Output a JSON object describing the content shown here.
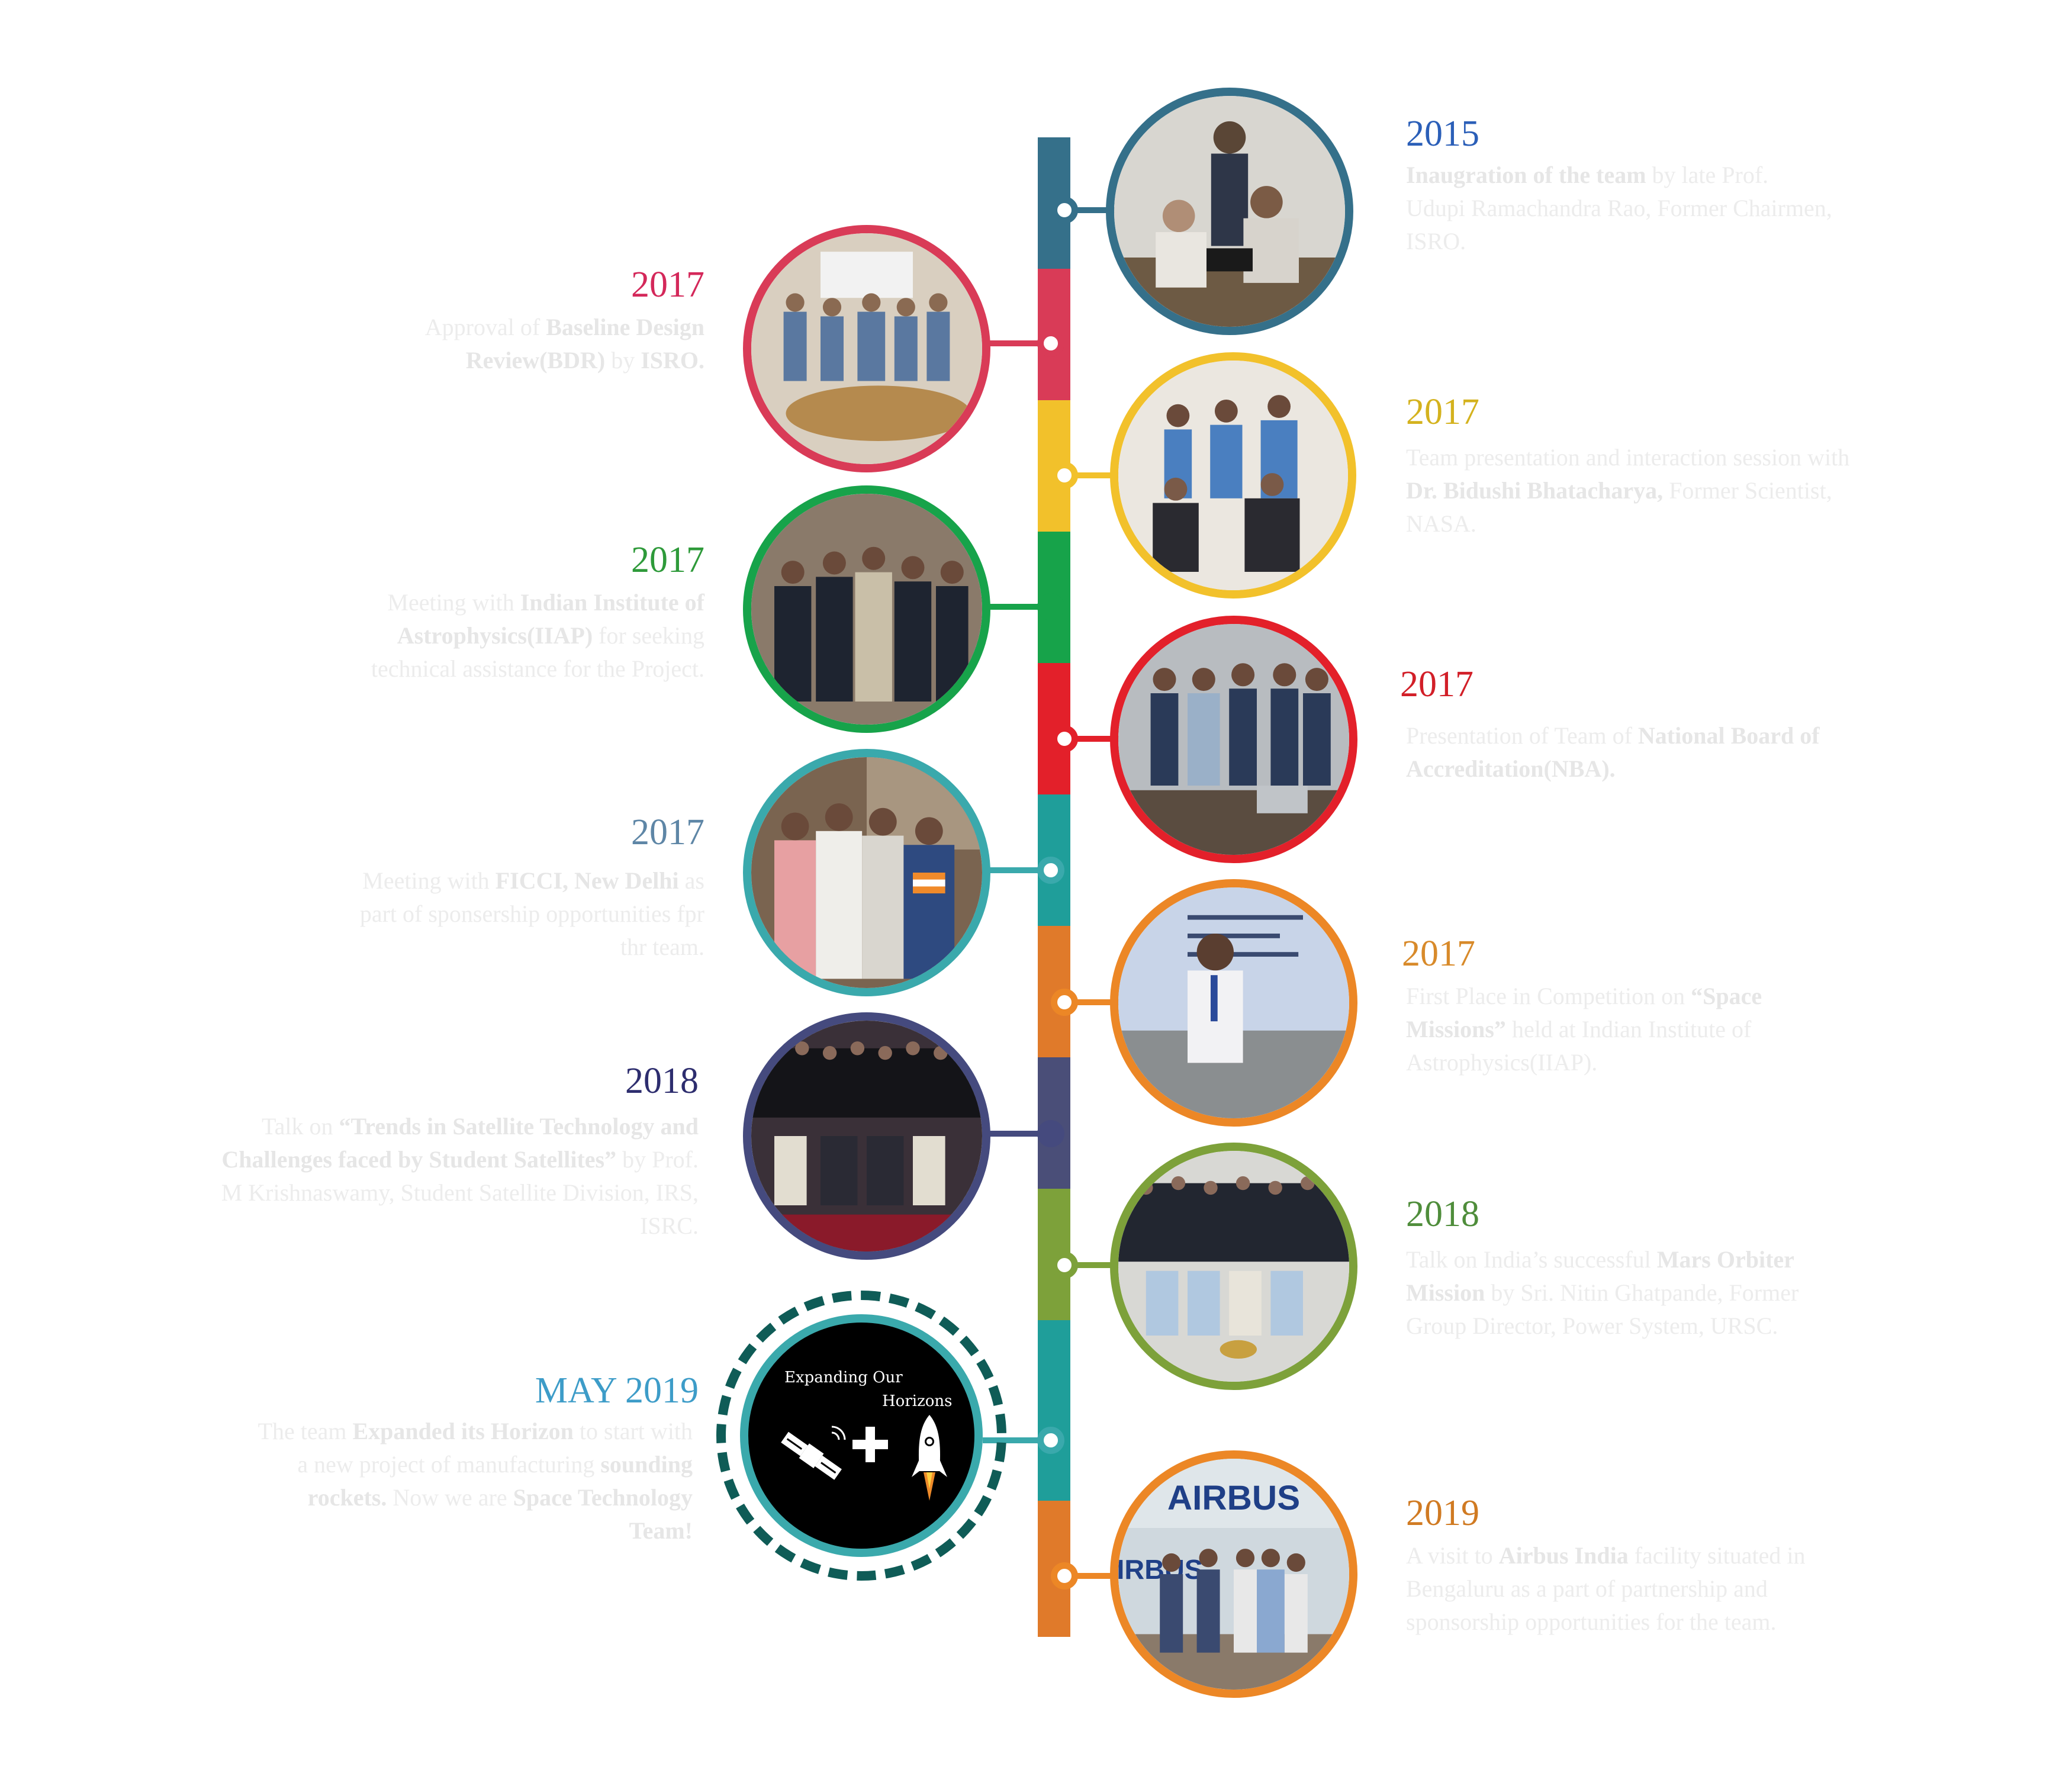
{
  "colors": {
    "blue_grey": "#35708a",
    "crimson": "#d93b57",
    "yellow": "#f2c12b",
    "green": "#17a34a",
    "red": "#e3202a",
    "teal": "#3aa9ac",
    "orange": "#ec8726",
    "navy": "#454a7e",
    "olive": "#7da13a",
    "dark_teal": "#0f5c57",
    "airbus_orange": "#e07a2a"
  },
  "events": [
    {
      "id": "e1",
      "side": "right",
      "year": "2015",
      "year_color": "#2b5fb8",
      "ring_color": "#35708a",
      "text_html_parts": [
        {
          "b": true,
          "t": "Inaugration of the team"
        },
        {
          "b": false,
          "t": " by late Prof. Udupi Ramachandra Rao, Former Chairmen, ISRO."
        }
      ]
    },
    {
      "id": "e2",
      "side": "left",
      "year": "2017",
      "year_color": "#d4285a",
      "ring_color": "#d93b57",
      "text_html_parts": [
        {
          "b": false,
          "t": "Approval of "
        },
        {
          "b": true,
          "t": "Baseline Design Review(BDR)"
        },
        {
          "b": false,
          "t": " by "
        },
        {
          "b": true,
          "t": "ISRO."
        }
      ]
    },
    {
      "id": "e3",
      "side": "right",
      "year": "2017",
      "year_color": "#d4b21e",
      "ring_color": "#f2c12b",
      "text_html_parts": [
        {
          "b": false,
          "t": "Team presentation and interaction session with "
        },
        {
          "b": true,
          "t": "Dr. Bidushi Bhatacharya,"
        },
        {
          "b": false,
          "t": " Former Scientist, NASA."
        }
      ]
    },
    {
      "id": "e4",
      "side": "left",
      "year": "2017",
      "year_color": "#2e9a3a",
      "ring_color": "#17a34a",
      "text_html_parts": [
        {
          "b": false,
          "t": "Meeting with "
        },
        {
          "b": true,
          "t": "Indian Institute of Astrophysics(IIAP)"
        },
        {
          "b": false,
          "t": " for seeking technical assistance for the Project."
        }
      ]
    },
    {
      "id": "e5",
      "side": "right",
      "year": "2017",
      "year_color": "#d21f28",
      "ring_color": "#e3202a",
      "text_html_parts": [
        {
          "b": false,
          "t": "Presentation of Team of "
        },
        {
          "b": true,
          "t": "National Board of Accreditation(NBA)."
        }
      ]
    },
    {
      "id": "e6",
      "side": "left",
      "year": "2017",
      "year_color": "#5e86a6",
      "ring_color": "#3aa9ac",
      "text_html_parts": [
        {
          "b": false,
          "t": "Meeting with "
        },
        {
          "b": true,
          "t": "FICCI, New Delhi"
        },
        {
          "b": false,
          "t": " as part of sponsership opportunities fpr thr team."
        }
      ]
    },
    {
      "id": "e7",
      "side": "right",
      "year": "2017",
      "year_color": "#d88a2a",
      "ring_color": "#ec8726",
      "text_html_parts": [
        {
          "b": false,
          "t": "First Place in Competition on "
        },
        {
          "b": true,
          "t": "“Space Missions”"
        },
        {
          "b": false,
          "t": " held at Indian Institute of Astrophysics(IIAP)."
        }
      ]
    },
    {
      "id": "e8",
      "side": "left",
      "year": "2018",
      "year_color": "#2d2d6e",
      "ring_color": "#454a7e",
      "text_html_parts": [
        {
          "b": false,
          "t": "Talk on "
        },
        {
          "b": true,
          "t": "“Trends in Satellite Technology and Challenges faced by Student Satellites”"
        },
        {
          "b": false,
          "t": " by Prof. M Krishnaswamy, Student Satellite Division, IRS, ISRC."
        }
      ]
    },
    {
      "id": "e9",
      "side": "right",
      "year": "2018",
      "year_color": "#4f8d3b",
      "ring_color": "#7da13a",
      "text_html_parts": [
        {
          "b": false,
          "t": "Talk on India’s successful "
        },
        {
          "b": true,
          "t": "Mars Orbiter Mission"
        },
        {
          "b": false,
          "t": " by Sri. Nitin Ghatpande, Former Group Director, Power System, URSC."
        }
      ]
    },
    {
      "id": "e10",
      "side": "left",
      "year": "MAY 2019",
      "year_color": "#3d9cc8",
      "ring_color": "#3aa9ac",
      "text_html_parts": [
        {
          "b": false,
          "t": "The team "
        },
        {
          "b": true,
          "t": "Expanded its Horizon"
        },
        {
          "b": false,
          "t": " to start with a new project of manufacturing "
        },
        {
          "b": true,
          "t": "sounding rockets."
        },
        {
          "b": false,
          "t": " Now we are "
        },
        {
          "b": true,
          "t": "Space Technology Team!"
        }
      ]
    },
    {
      "id": "e11",
      "side": "right",
      "year": "2019",
      "year_color": "#d07a22",
      "ring_color": "#ec8726",
      "text_html_parts": [
        {
          "b": false,
          "t": "A visit to "
        },
        {
          "b": true,
          "t": "Airbus India"
        },
        {
          "b": false,
          "t": " facility situated in Bengaluru as a part of partnership and sponsorship opportunities for the team."
        }
      ]
    }
  ],
  "badge": {
    "line1": "Expanding Our",
    "line2": "Horizons",
    "icons": [
      "satellite-icon",
      "plus-icon",
      "rocket-icon"
    ]
  },
  "airbus_sign": {
    "top": "AIRBUS",
    "bottom": "IRBUS"
  }
}
